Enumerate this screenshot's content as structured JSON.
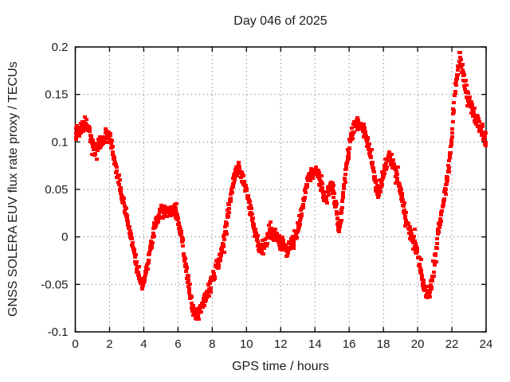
{
  "chart_data": {
    "type": "scatter",
    "title": "Day 046 of 2025",
    "xlabel": "GPS time / hours",
    "ylabel": "GNSS SOLERA EUV flux rate proxy / TECUs",
    "xlim": [
      0,
      24
    ],
    "ylim": [
      -0.1,
      0.2
    ],
    "xticks": [
      0,
      2,
      4,
      6,
      8,
      10,
      12,
      14,
      16,
      18,
      20,
      22,
      24
    ],
    "xtick_labels": [
      "0",
      "2",
      "4",
      "6",
      "8",
      "10",
      "12",
      "14",
      "16",
      "18",
      "20",
      "22",
      "24"
    ],
    "yticks": [
      0.2,
      0.15,
      0.1,
      0.05,
      0,
      -0.05,
      -0.1
    ],
    "ytick_labels": [
      "0.2",
      "0.15",
      "0.1",
      "0.05",
      "0",
      "-0.05",
      "-0.1"
    ],
    "grid": true,
    "grid_style": "dotted",
    "grid_color": "#8c8c8c",
    "legend": "none",
    "series_color": "#ff0000",
    "marker": "filled-square",
    "marker_size_px": 4,
    "noise_band": 0.0085,
    "series": [
      {
        "name": "EUV flux rate proxy",
        "keypoints": [
          [
            0,
            0.103
          ],
          [
            0.1,
            0.112
          ],
          [
            0.2,
            0.106
          ],
          [
            0.3,
            0.112
          ],
          [
            0.45,
            0.117
          ],
          [
            0.6,
            0.118
          ],
          [
            0.75,
            0.113
          ],
          [
            0.9,
            0.105
          ],
          [
            1.0,
            0.096
          ],
          [
            1.1,
            0.092
          ],
          [
            1.25,
            0.09
          ],
          [
            1.4,
            0.096
          ],
          [
            1.55,
            0.1
          ],
          [
            1.7,
            0.104
          ],
          [
            1.85,
            0.107
          ],
          [
            2.0,
            0.104
          ],
          [
            2.1,
            0.099
          ],
          [
            2.2,
            0.089
          ],
          [
            2.4,
            0.071
          ],
          [
            2.6,
            0.053
          ],
          [
            2.8,
            0.036
          ],
          [
            3.0,
            0.021
          ],
          [
            3.2,
            0.004
          ],
          [
            3.4,
            -0.014
          ],
          [
            3.6,
            -0.032
          ],
          [
            3.8,
            -0.046
          ],
          [
            3.9,
            -0.052
          ],
          [
            4.0,
            -0.049
          ],
          [
            4.2,
            -0.029
          ],
          [
            4.4,
            -0.011
          ],
          [
            4.6,
            0.007
          ],
          [
            4.8,
            0.019
          ],
          [
            5.0,
            0.026
          ],
          [
            5.2,
            0.024
          ],
          [
            5.4,
            0.028
          ],
          [
            5.6,
            0.026
          ],
          [
            5.8,
            0.028
          ],
          [
            6.0,
            0.018
          ],
          [
            6.2,
            0.002
          ],
          [
            6.4,
            -0.022
          ],
          [
            6.6,
            -0.048
          ],
          [
            6.8,
            -0.072
          ],
          [
            7.0,
            -0.086
          ],
          [
            7.1,
            -0.084
          ],
          [
            7.25,
            -0.079
          ],
          [
            7.4,
            -0.072
          ],
          [
            7.6,
            -0.066
          ],
          [
            7.8,
            -0.058
          ],
          [
            8.0,
            -0.044
          ],
          [
            8.2,
            -0.034
          ],
          [
            8.4,
            -0.026
          ],
          [
            8.6,
            -0.01
          ],
          [
            8.8,
            0.01
          ],
          [
            9.0,
            0.034
          ],
          [
            9.2,
            0.058
          ],
          [
            9.35,
            0.068
          ],
          [
            9.5,
            0.071
          ],
          [
            9.7,
            0.066
          ],
          [
            9.9,
            0.054
          ],
          [
            10.1,
            0.04
          ],
          [
            10.3,
            0.022
          ],
          [
            10.5,
            0.005
          ],
          [
            10.7,
            -0.008
          ],
          [
            10.9,
            -0.012
          ],
          [
            11.1,
            -0.008
          ],
          [
            11.3,
            0.004
          ],
          [
            11.45,
            0.006
          ],
          [
            11.6,
            0.002
          ],
          [
            11.8,
            -0.003
          ],
          [
            12.0,
            -0.006
          ],
          [
            12.2,
            -0.01
          ],
          [
            12.4,
            -0.012
          ],
          [
            12.6,
            -0.008
          ],
          [
            12.8,
            -0.002
          ],
          [
            13.0,
            0.008
          ],
          [
            13.2,
            0.022
          ],
          [
            13.4,
            0.042
          ],
          [
            13.6,
            0.06
          ],
          [
            13.8,
            0.068
          ],
          [
            14.0,
            0.07
          ],
          [
            14.2,
            0.064
          ],
          [
            14.4,
            0.054
          ],
          [
            14.6,
            0.038
          ],
          [
            14.8,
            0.05
          ],
          [
            15.0,
            0.054
          ],
          [
            15.2,
            0.038
          ],
          [
            15.4,
            0.006
          ],
          [
            15.55,
            0.024
          ],
          [
            15.7,
            0.056
          ],
          [
            15.9,
            0.082
          ],
          [
            16.1,
            0.103
          ],
          [
            16.3,
            0.116
          ],
          [
            16.5,
            0.12
          ],
          [
            16.7,
            0.116
          ],
          [
            16.9,
            0.11
          ],
          [
            17.1,
            0.096
          ],
          [
            17.3,
            0.083
          ],
          [
            17.5,
            0.06
          ],
          [
            17.7,
            0.043
          ],
          [
            17.9,
            0.06
          ],
          [
            18.1,
            0.076
          ],
          [
            18.35,
            0.084
          ],
          [
            18.5,
            0.081
          ],
          [
            18.7,
            0.071
          ],
          [
            18.9,
            0.056
          ],
          [
            19.1,
            0.039
          ],
          [
            19.3,
            0.021
          ],
          [
            19.5,
            0.006
          ],
          [
            19.7,
            -0.004
          ],
          [
            19.9,
            -0.011
          ],
          [
            20.1,
            -0.028
          ],
          [
            20.3,
            -0.048
          ],
          [
            20.5,
            -0.059
          ],
          [
            20.65,
            -0.063
          ],
          [
            20.8,
            -0.053
          ],
          [
            20.95,
            -0.033
          ],
          [
            21.1,
            -0.012
          ],
          [
            21.25,
            0.007
          ],
          [
            21.4,
            0.024
          ],
          [
            21.55,
            0.041
          ],
          [
            21.7,
            0.059
          ],
          [
            21.85,
            0.079
          ],
          [
            22.0,
            0.108
          ],
          [
            22.15,
            0.145
          ],
          [
            22.3,
            0.17
          ],
          [
            22.45,
            0.187
          ],
          [
            22.6,
            0.178
          ],
          [
            22.75,
            0.16
          ],
          [
            22.9,
            0.149
          ],
          [
            23.05,
            0.142
          ],
          [
            23.2,
            0.134
          ],
          [
            23.35,
            0.127
          ],
          [
            23.5,
            0.121
          ],
          [
            23.65,
            0.116
          ],
          [
            23.8,
            0.111
          ],
          [
            23.95,
            0.104
          ],
          [
            24,
            0.102
          ]
        ]
      }
    ]
  }
}
